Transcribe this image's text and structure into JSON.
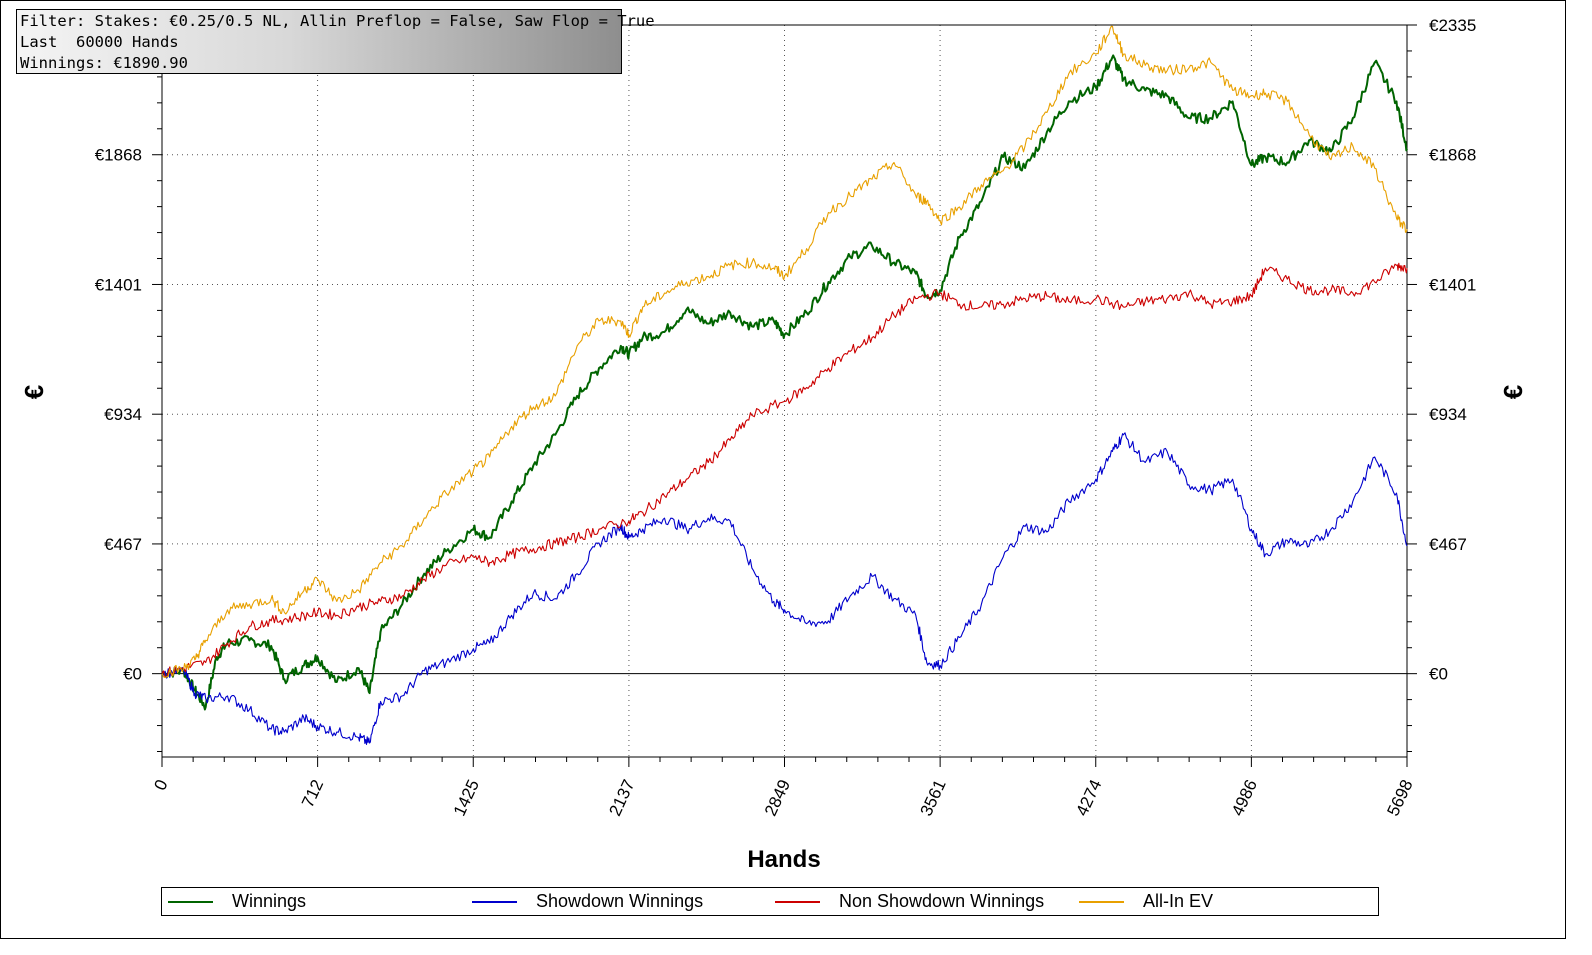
{
  "filter_box": {
    "line1": "Filter: Stakes: €0.25/0.5 NL, Allin Preflop = False, Saw Flop = True",
    "line2": "Last  60000 Hands",
    "line3": "Winnings: €1890.90"
  },
  "chart_data": {
    "type": "line",
    "xlabel": "Hands",
    "ylabel": "€",
    "xlim": [
      0,
      5698
    ],
    "ylim": [
      -300,
      2335
    ],
    "x_ticks": [
      "0",
      "712",
      "1425",
      "2137",
      "2849",
      "3561",
      "4274",
      "4986",
      "5698"
    ],
    "y_ticks_left": [
      "€0",
      "€467",
      "€934",
      "€1401",
      "€1868"
    ],
    "y_ticks_right": [
      "€0",
      "€467",
      "€934",
      "€1401",
      "€1868",
      "€2335"
    ],
    "grid": true,
    "legend_position": "bottom",
    "series": [
      {
        "name": "Winnings",
        "color": "#006400",
        "x": [
          0,
          100,
          150,
          200,
          250,
          300,
          400,
          500,
          560,
          650,
          712,
          800,
          900,
          950,
          1000,
          1100,
          1200,
          1300,
          1425,
          1500,
          1600,
          1700,
          1800,
          1900,
          2000,
          2100,
          2137,
          2200,
          2300,
          2400,
          2500,
          2600,
          2700,
          2800,
          2849,
          2950,
          3050,
          3150,
          3250,
          3350,
          3450,
          3500,
          3561,
          3650,
          3750,
          3850,
          3950,
          4050,
          4150,
          4274,
          4350,
          4400,
          4500,
          4600,
          4700,
          4800,
          4900,
          4986,
          5050,
          5150,
          5250,
          5350,
          5450,
          5550,
          5650,
          5698
        ],
        "y": [
          0,
          10,
          -60,
          -120,
          60,
          110,
          120,
          100,
          -20,
          30,
          60,
          -30,
          20,
          -70,
          150,
          250,
          360,
          440,
          520,
          490,
          620,
          750,
          860,
          1000,
          1100,
          1180,
          1150,
          1210,
          1230,
          1310,
          1260,
          1300,
          1250,
          1270,
          1220,
          1300,
          1410,
          1500,
          1540,
          1480,
          1440,
          1360,
          1380,
          1570,
          1700,
          1860,
          1820,
          1950,
          2060,
          2110,
          2220,
          2140,
          2100,
          2080,
          2000,
          2000,
          2060,
          1830,
          1860,
          1840,
          1920,
          1880,
          2000,
          2200,
          2060,
          1890
        ]
      },
      {
        "name": "Showdown Winnings",
        "color": "#0000cc",
        "x": [
          0,
          100,
          150,
          200,
          300,
          400,
          500,
          560,
          650,
          712,
          800,
          900,
          950,
          1000,
          1100,
          1200,
          1300,
          1425,
          1500,
          1600,
          1700,
          1800,
          1900,
          2000,
          2100,
          2137,
          2200,
          2300,
          2400,
          2500,
          2600,
          2700,
          2800,
          2849,
          2950,
          3050,
          3150,
          3250,
          3350,
          3450,
          3500,
          3561,
          3650,
          3750,
          3850,
          3950,
          4050,
          4150,
          4274,
          4350,
          4400,
          4500,
          4600,
          4700,
          4800,
          4900,
          4986,
          5050,
          5150,
          5250,
          5350,
          5450,
          5550,
          5650,
          5698
        ],
        "y": [
          0,
          10,
          -70,
          -90,
          -80,
          -130,
          -200,
          -210,
          -160,
          -190,
          -210,
          -230,
          -250,
          -100,
          -80,
          10,
          40,
          90,
          110,
          210,
          290,
          270,
          360,
          470,
          530,
          490,
          520,
          560,
          520,
          560,
          550,
          380,
          260,
          230,
          180,
          190,
          280,
          350,
          270,
          210,
          40,
          30,
          130,
          250,
          420,
          530,
          510,
          620,
          700,
          800,
          860,
          760,
          800,
          680,
          660,
          700,
          520,
          430,
          480,
          460,
          520,
          620,
          780,
          650,
          460
        ]
      },
      {
        "name": "Non Showdown Winnings",
        "color": "#cc0000",
        "x": [
          0,
          100,
          200,
          300,
          400,
          500,
          600,
          712,
          800,
          900,
          1000,
          1100,
          1200,
          1300,
          1425,
          1500,
          1600,
          1700,
          1800,
          1900,
          2000,
          2137,
          2200,
          2300,
          2400,
          2500,
          2600,
          2700,
          2849,
          2950,
          3050,
          3150,
          3250,
          3350,
          3450,
          3561,
          3650,
          3750,
          3850,
          3950,
          4050,
          4150,
          4274,
          4400,
          4500,
          4600,
          4700,
          4800,
          4900,
          4986,
          5050,
          5150,
          5250,
          5350,
          5450,
          5550,
          5650,
          5698
        ],
        "y": [
          0,
          20,
          40,
          110,
          170,
          190,
          200,
          220,
          210,
          240,
          260,
          280,
          340,
          390,
          420,
          400,
          430,
          450,
          470,
          490,
          520,
          550,
          580,
          640,
          700,
          760,
          840,
          930,
          980,
          1030,
          1100,
          1160,
          1210,
          1290,
          1350,
          1370,
          1330,
          1320,
          1330,
          1350,
          1360,
          1340,
          1350,
          1320,
          1340,
          1350,
          1370,
          1330,
          1340,
          1360,
          1460,
          1420,
          1380,
          1380,
          1370,
          1410,
          1470,
          1460
        ]
      },
      {
        "name": "All-In EV",
        "color": "#e8a000",
        "x": [
          0,
          100,
          150,
          200,
          300,
          400,
          500,
          560,
          650,
          712,
          800,
          900,
          1000,
          1100,
          1200,
          1300,
          1425,
          1500,
          1600,
          1700,
          1800,
          1900,
          2000,
          2100,
          2137,
          2200,
          2300,
          2400,
          2500,
          2600,
          2700,
          2800,
          2849,
          2950,
          3050,
          3150,
          3250,
          3350,
          3450,
          3500,
          3561,
          3650,
          3750,
          3850,
          3950,
          4050,
          4150,
          4274,
          4350,
          4400,
          4500,
          4600,
          4700,
          4800,
          4900,
          4986,
          5050,
          5150,
          5250,
          5350,
          5450,
          5550,
          5650,
          5698
        ],
        "y": [
          0,
          20,
          50,
          120,
          230,
          250,
          270,
          220,
          300,
          340,
          260,
          300,
          400,
          460,
          560,
          650,
          730,
          780,
          890,
          960,
          1000,
          1180,
          1270,
          1270,
          1220,
          1320,
          1370,
          1410,
          1430,
          1470,
          1480,
          1460,
          1430,
          1530,
          1660,
          1720,
          1780,
          1840,
          1720,
          1700,
          1630,
          1680,
          1760,
          1810,
          1900,
          2020,
          2160,
          2230,
          2330,
          2230,
          2190,
          2170,
          2180,
          2200,
          2100,
          2080,
          2090,
          2060,
          1940,
          1850,
          1900,
          1820,
          1640,
          1600
        ]
      }
    ]
  },
  "legend": {
    "items": [
      "Winnings",
      "Showdown Winnings",
      "Non Showdown Winnings",
      "All-In EV"
    ]
  }
}
